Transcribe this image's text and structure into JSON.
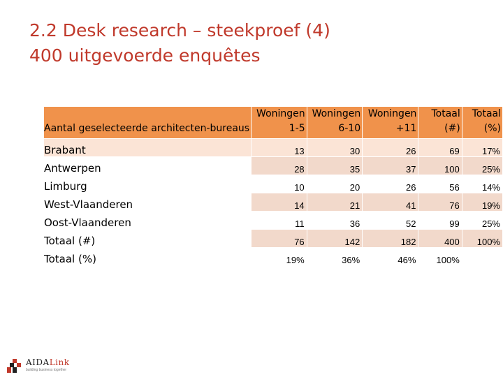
{
  "title": {
    "line1": "2.2 Desk research – steekproef (4)",
    "line2": "400 uitgevoerde enquêtes"
  },
  "table": {
    "row_header": "Aantal geselecteerde architecten-bureaus",
    "columns": [
      {
        "line1": "Woningen",
        "line2": "1-5"
      },
      {
        "line1": "Woningen",
        "line2": "6-10"
      },
      {
        "line1": "Woningen",
        "line2": "+11"
      },
      {
        "line1": "Totaal",
        "line2": "(#)"
      },
      {
        "line1": "Totaal",
        "line2": "(%)"
      }
    ],
    "rows": [
      {
        "label": "Brabant",
        "values": [
          "13",
          "30",
          "26",
          "69",
          "17%"
        ]
      },
      {
        "label": "Antwerpen",
        "values": [
          "28",
          "35",
          "37",
          "100",
          "25%"
        ]
      },
      {
        "label": "Limburg",
        "values": [
          "10",
          "20",
          "26",
          "56",
          "14%"
        ]
      },
      {
        "label": "West-Vlaanderen",
        "values": [
          "14",
          "21",
          "41",
          "76",
          "19%"
        ]
      },
      {
        "label": "Oost-Vlaanderen",
        "values": [
          "11",
          "36",
          "52",
          "99",
          "25%"
        ]
      },
      {
        "label": "Totaal (#)",
        "values": [
          "76",
          "142",
          "182",
          "400",
          "100%"
        ]
      },
      {
        "label": "Totaal (%)",
        "values": [
          "19%",
          "36%",
          "46%",
          "100%",
          ""
        ]
      }
    ]
  },
  "logo": {
    "name_part1": "AIDA",
    "name_part2": "Link",
    "tagline": "building business together",
    "icon": "aida-link-logo-icon"
  },
  "colors": {
    "title": "#c0392b",
    "header_fill": "#f0924b",
    "band_fill": "#f2d9cb"
  }
}
